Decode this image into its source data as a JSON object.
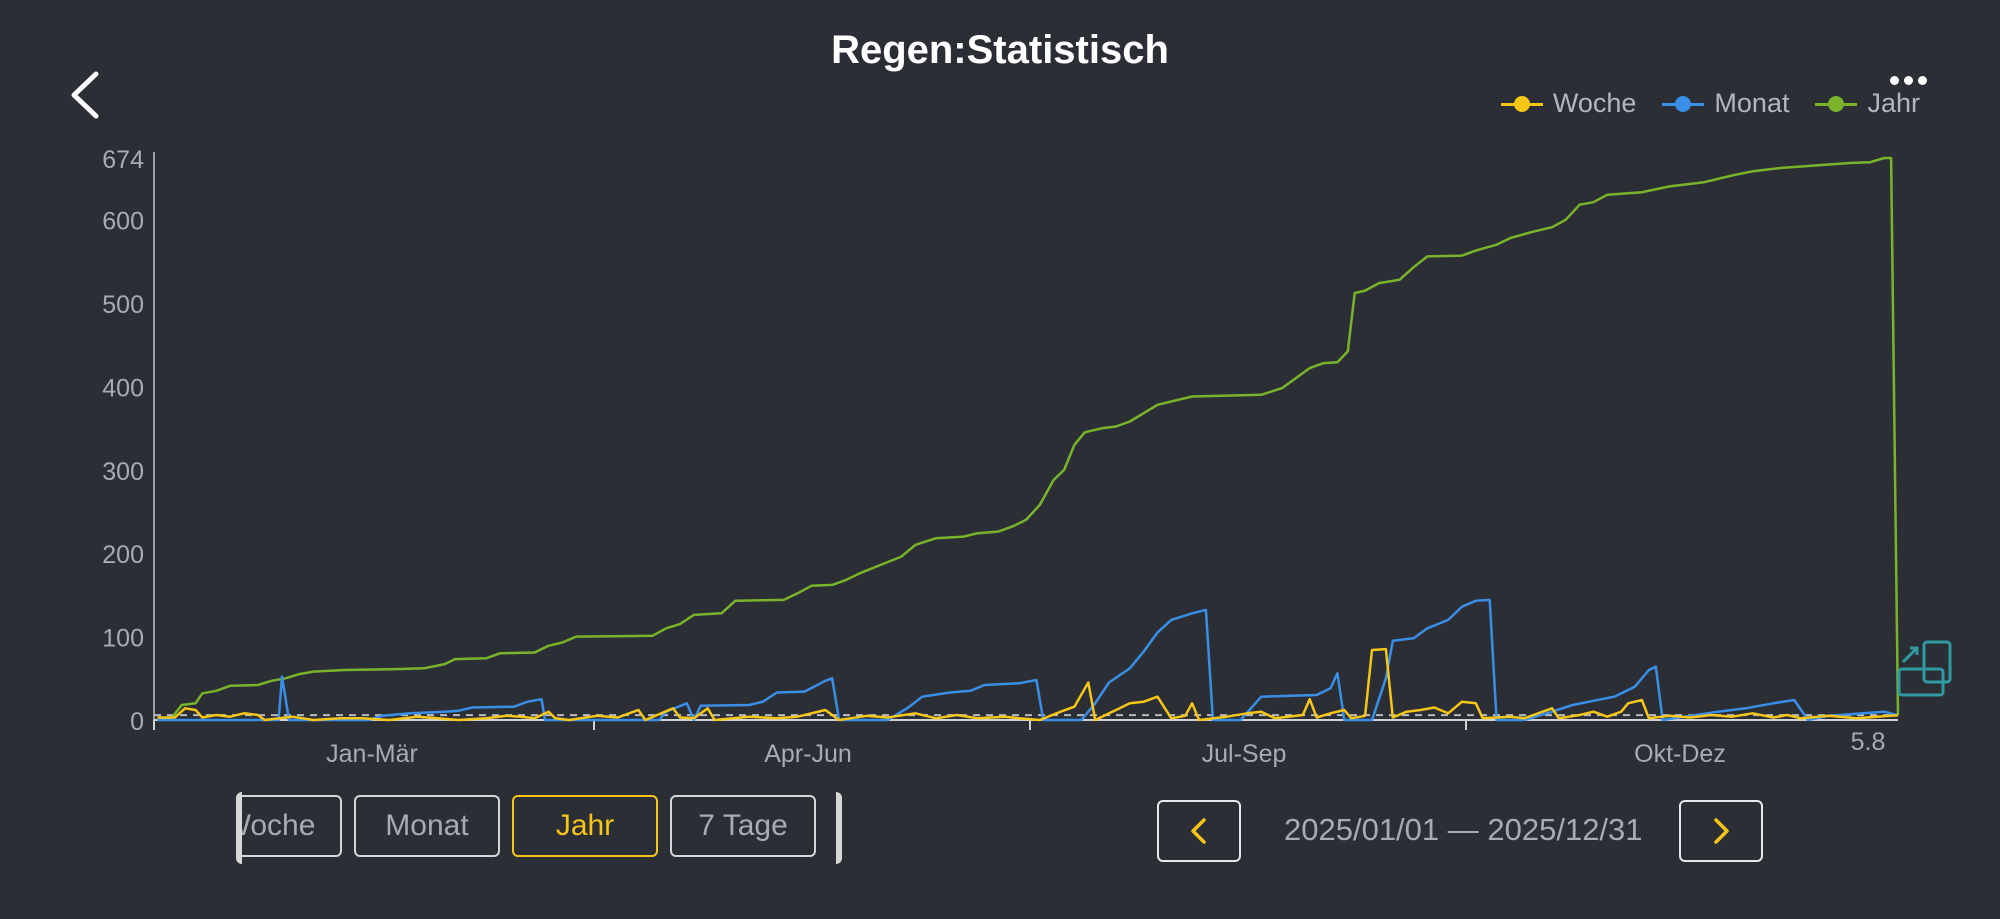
{
  "header": {
    "title": "Regen:Statistisch"
  },
  "icons": {
    "back": "chevron-left-icon",
    "more": "more-dots-icon",
    "prev": "chevron-left-icon",
    "next": "chevron-right-icon",
    "resize": "expand-icon"
  },
  "colors": {
    "woche": "#f5c518",
    "monat": "#3a8ee6",
    "jahr": "#7ab32a",
    "accent": "#f5c518"
  },
  "tabs": [
    {
      "label": "Woche",
      "active": false
    },
    {
      "label": "Monat",
      "active": false
    },
    {
      "label": "Jahr",
      "active": true
    },
    {
      "label": "7 Tage",
      "active": false
    }
  ],
  "date_range": "2025/01/01 — 2025/12/31",
  "end_value_label": "5.8",
  "chart_data": {
    "type": "line",
    "categories": [
      "Jan-Mär",
      "Apr-Jun",
      "Jul-Sep",
      "Okt-Dez"
    ],
    "y_ticks": [
      "0",
      "100",
      "200",
      "300",
      "400",
      "500",
      "600",
      "674"
    ],
    "ylim": [
      0,
      674
    ],
    "reference_line": 5.8,
    "legend": [
      "Woche",
      "Monat",
      "Jahr"
    ],
    "legend_position": "top-right",
    "series": [
      {
        "name": "Jahr",
        "color": "#7ab32a",
        "points": [
          [
            1,
            0
          ],
          [
            5,
            2
          ],
          [
            8,
            18
          ],
          [
            12,
            20
          ],
          [
            14,
            32
          ],
          [
            18,
            35
          ],
          [
            22,
            41
          ],
          [
            30,
            42
          ],
          [
            34,
            47
          ],
          [
            38,
            50
          ],
          [
            42,
            55
          ],
          [
            46,
            58
          ],
          [
            55,
            60
          ],
          [
            70,
            61
          ],
          [
            78,
            62
          ],
          [
            84,
            67
          ],
          [
            87,
            73
          ],
          [
            96,
            74
          ],
          [
            100,
            80
          ],
          [
            110,
            81
          ],
          [
            114,
            89
          ],
          [
            118,
            93
          ],
          [
            122,
            100
          ],
          [
            144,
            101
          ],
          [
            148,
            110
          ],
          [
            152,
            115
          ],
          [
            156,
            126
          ],
          [
            164,
            128
          ],
          [
            168,
            143
          ],
          [
            182,
            144
          ],
          [
            186,
            152
          ],
          [
            190,
            161
          ],
          [
            196,
            162
          ],
          [
            200,
            168
          ],
          [
            204,
            176
          ],
          [
            210,
            186
          ],
          [
            216,
            196
          ],
          [
            220,
            210
          ],
          [
            226,
            218
          ],
          [
            234,
            220
          ],
          [
            238,
            224
          ],
          [
            244,
            226
          ],
          [
            248,
            232
          ],
          [
            252,
            240
          ],
          [
            256,
            258
          ],
          [
            260,
            288
          ],
          [
            263,
            300
          ],
          [
            266,
            330
          ],
          [
            269,
            345
          ],
          [
            274,
            350
          ],
          [
            278,
            352
          ],
          [
            282,
            358
          ],
          [
            286,
            368
          ],
          [
            290,
            378
          ],
          [
            300,
            388
          ],
          [
            320,
            390
          ],
          [
            326,
            398
          ],
          [
            330,
            410
          ],
          [
            334,
            422
          ],
          [
            338,
            428
          ],
          [
            342,
            429
          ],
          [
            345,
            442
          ],
          [
            347,
            512
          ],
          [
            350,
            515
          ],
          [
            354,
            524
          ],
          [
            360,
            528
          ],
          [
            364,
            543
          ],
          [
            368,
            556
          ],
          [
            378,
            557
          ],
          [
            382,
            563
          ],
          [
            388,
            570
          ],
          [
            392,
            578
          ],
          [
            398,
            585
          ],
          [
            404,
            591
          ],
          [
            408,
            600
          ],
          [
            412,
            618
          ],
          [
            416,
            621
          ],
          [
            420,
            630
          ],
          [
            430,
            633
          ],
          [
            438,
            640
          ],
          [
            448,
            645
          ],
          [
            456,
            653
          ],
          [
            462,
            658
          ],
          [
            470,
            662
          ],
          [
            480,
            665
          ],
          [
            490,
            668
          ],
          [
            496,
            669
          ],
          [
            500,
            674
          ],
          [
            502,
            674
          ],
          [
            504,
            5.8
          ]
        ]
      },
      {
        "name": "Monat",
        "color": "#3a8ee6",
        "points": [
          [
            1,
            0
          ],
          [
            36,
            0
          ],
          [
            37,
            52
          ],
          [
            39,
            0
          ],
          [
            62,
            0
          ],
          [
            66,
            5
          ],
          [
            74,
            8
          ],
          [
            84,
            10
          ],
          [
            88,
            11
          ],
          [
            92,
            15
          ],
          [
            104,
            16
          ],
          [
            108,
            22
          ],
          [
            112,
            25
          ],
          [
            113,
            0
          ],
          [
            146,
            0
          ],
          [
            148,
            10
          ],
          [
            154,
            20
          ],
          [
            156,
            0
          ],
          [
            158,
            17
          ],
          [
            172,
            18
          ],
          [
            176,
            22
          ],
          [
            180,
            33
          ],
          [
            188,
            34
          ],
          [
            194,
            47
          ],
          [
            196,
            50
          ],
          [
            198,
            0
          ],
          [
            212,
            0
          ],
          [
            218,
            15
          ],
          [
            222,
            28
          ],
          [
            230,
            33
          ],
          [
            236,
            35
          ],
          [
            240,
            42
          ],
          [
            250,
            44
          ],
          [
            255,
            48
          ],
          [
            257,
            0
          ],
          [
            268,
            0
          ],
          [
            272,
            20
          ],
          [
            276,
            45
          ],
          [
            282,
            62
          ],
          [
            286,
            82
          ],
          [
            290,
            105
          ],
          [
            294,
            120
          ],
          [
            300,
            128
          ],
          [
            304,
            132
          ],
          [
            306,
            0
          ],
          [
            314,
            0
          ],
          [
            320,
            28
          ],
          [
            336,
            30
          ],
          [
            340,
            38
          ],
          [
            342,
            56
          ],
          [
            344,
            0
          ],
          [
            352,
            0
          ],
          [
            356,
            50
          ],
          [
            358,
            95
          ],
          [
            364,
            98
          ],
          [
            368,
            110
          ],
          [
            374,
            120
          ],
          [
            378,
            136
          ],
          [
            382,
            143
          ],
          [
            386,
            144
          ],
          [
            388,
            0
          ],
          [
            396,
            0
          ],
          [
            404,
            10
          ],
          [
            410,
            18
          ],
          [
            416,
            23
          ],
          [
            422,
            28
          ],
          [
            428,
            40
          ],
          [
            432,
            60
          ],
          [
            434,
            64
          ],
          [
            436,
            0
          ],
          [
            444,
            5
          ],
          [
            452,
            10
          ],
          [
            460,
            14
          ],
          [
            468,
            20
          ],
          [
            474,
            24
          ],
          [
            478,
            0
          ],
          [
            484,
            5
          ],
          [
            494,
            8
          ],
          [
            500,
            10
          ],
          [
            504,
            5.8
          ]
        ]
      },
      {
        "name": "Woche",
        "color": "#f5c518",
        "points": [
          [
            1,
            3
          ],
          [
            6,
            3
          ],
          [
            9,
            14
          ],
          [
            12,
            12
          ],
          [
            14,
            3
          ],
          [
            18,
            6
          ],
          [
            22,
            4
          ],
          [
            26,
            8
          ],
          [
            30,
            6
          ],
          [
            32,
            0
          ],
          [
            40,
            4
          ],
          [
            46,
            0
          ],
          [
            54,
            2
          ],
          [
            60,
            2
          ],
          [
            68,
            0
          ],
          [
            76,
            4
          ],
          [
            82,
            2
          ],
          [
            88,
            0
          ],
          [
            96,
            2
          ],
          [
            102,
            5
          ],
          [
            106,
            4
          ],
          [
            110,
            2
          ],
          [
            114,
            10
          ],
          [
            116,
            2
          ],
          [
            120,
            0
          ],
          [
            128,
            5
          ],
          [
            134,
            3
          ],
          [
            140,
            12
          ],
          [
            142,
            0
          ],
          [
            150,
            14
          ],
          [
            152,
            3
          ],
          [
            156,
            2
          ],
          [
            160,
            14
          ],
          [
            162,
            0
          ],
          [
            172,
            4
          ],
          [
            180,
            2
          ],
          [
            186,
            4
          ],
          [
            194,
            12
          ],
          [
            198,
            0
          ],
          [
            206,
            5
          ],
          [
            212,
            3
          ],
          [
            220,
            8
          ],
          [
            226,
            2
          ],
          [
            232,
            6
          ],
          [
            238,
            2
          ],
          [
            246,
            4
          ],
          [
            250,
            2
          ],
          [
            256,
            0
          ],
          [
            262,
            10
          ],
          [
            266,
            16
          ],
          [
            270,
            45
          ],
          [
            272,
            0
          ],
          [
            278,
            12
          ],
          [
            282,
            20
          ],
          [
            286,
            22
          ],
          [
            290,
            28
          ],
          [
            294,
            2
          ],
          [
            298,
            5
          ],
          [
            300,
            20
          ],
          [
            302,
            0
          ],
          [
            310,
            4
          ],
          [
            316,
            8
          ],
          [
            320,
            10
          ],
          [
            324,
            2
          ],
          [
            332,
            6
          ],
          [
            334,
            25
          ],
          [
            336,
            3
          ],
          [
            340,
            8
          ],
          [
            344,
            12
          ],
          [
            346,
            2
          ],
          [
            350,
            5
          ],
          [
            352,
            84
          ],
          [
            356,
            85
          ],
          [
            358,
            3
          ],
          [
            362,
            10
          ],
          [
            366,
            12
          ],
          [
            370,
            15
          ],
          [
            374,
            8
          ],
          [
            378,
            22
          ],
          [
            382,
            20
          ],
          [
            384,
            2
          ],
          [
            392,
            4
          ],
          [
            396,
            2
          ],
          [
            400,
            8
          ],
          [
            404,
            14
          ],
          [
            406,
            2
          ],
          [
            412,
            6
          ],
          [
            416,
            10
          ],
          [
            420,
            4
          ],
          [
            424,
            10
          ],
          [
            426,
            20
          ],
          [
            430,
            24
          ],
          [
            432,
            2
          ],
          [
            438,
            5
          ],
          [
            444,
            3
          ],
          [
            450,
            6
          ],
          [
            456,
            4
          ],
          [
            462,
            8
          ],
          [
            468,
            3
          ],
          [
            472,
            6
          ],
          [
            476,
            2
          ],
          [
            484,
            5
          ],
          [
            492,
            2
          ],
          [
            498,
            4
          ],
          [
            504,
            5.8
          ]
        ]
      }
    ]
  }
}
